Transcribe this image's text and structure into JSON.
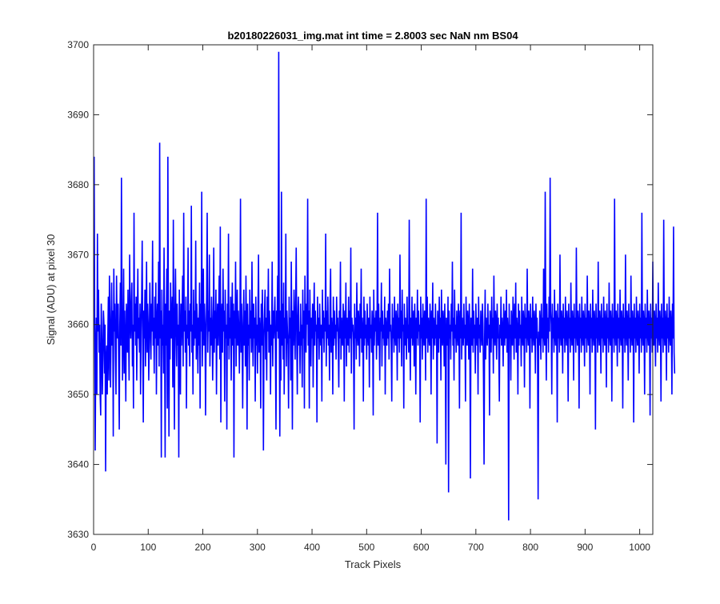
{
  "chart_data": {
    "type": "line",
    "title": "b20180226031_img.mat int time = 2.8003 sec  NaN nm BS04",
    "xlabel": "Track Pixels",
    "ylabel": "Signal (ADU) at pixel 30",
    "xlim": [
      0,
      1024
    ],
    "ylim": [
      3630,
      3700
    ],
    "xticks": [
      0,
      100,
      200,
      300,
      400,
      500,
      600,
      700,
      800,
      900,
      1000
    ],
    "yticks": [
      3630,
      3640,
      3650,
      3660,
      3670,
      3680,
      3690,
      3700
    ],
    "grid": false,
    "legend": "none",
    "series": [
      {
        "color": "#0000ff",
        "x_start": 1,
        "x_step": 1,
        "y_min": 3632,
        "y_max": 3699,
        "values": [
          3684,
          3660,
          3642,
          3657,
          3661,
          3650,
          3673,
          3659,
          3665,
          3656,
          3660,
          3650,
          3647,
          3663,
          3658,
          3650,
          3655,
          3662,
          3660,
          3653,
          3660,
          3639,
          3655,
          3657,
          3650,
          3658,
          3664,
          3652,
          3667,
          3660,
          3651,
          3659,
          3666,
          3657,
          3662,
          3644,
          3668,
          3659,
          3663,
          3655,
          3650,
          3667,
          3660,
          3658,
          3663,
          3654,
          3645,
          3660,
          3666,
          3657,
          3681,
          3662,
          3652,
          3659,
          3668,
          3653,
          3662,
          3657,
          3649,
          3663,
          3660,
          3656,
          3665,
          3659,
          3652,
          3670,
          3661,
          3658,
          3663,
          3666,
          3654,
          3660,
          3648,
          3676,
          3659,
          3663,
          3657,
          3664,
          3652,
          3660,
          3668,
          3658,
          3661,
          3656,
          3663,
          3650,
          3659,
          3664,
          3672,
          3657,
          3646,
          3662,
          3658,
          3665,
          3654,
          3661,
          3669,
          3656,
          3663,
          3660,
          3652,
          3658,
          3666,
          3660,
          3655,
          3663,
          3659,
          3672,
          3657,
          3661,
          3653,
          3664,
          3658,
          3666,
          3650,
          3660,
          3663,
          3657,
          3669,
          3654,
          3686,
          3658,
          3662,
          3641,
          3665,
          3657,
          3660,
          3653,
          3671,
          3659,
          3641,
          3663,
          3657,
          3668,
          3648,
          3684,
          3659,
          3644,
          3662,
          3655,
          3666,
          3658,
          3660,
          3664,
          3651,
          3675,
          3657,
          3645,
          3662,
          3668,
          3659,
          3654,
          3663,
          3657,
          3660,
          3641,
          3665,
          3658,
          3650,
          3663,
          3657,
          3661,
          3667,
          3654,
          3676,
          3659,
          3662,
          3656,
          3664,
          3648,
          3660,
          3658,
          3671,
          3657,
          3662,
          3654,
          3663,
          3659,
          3677,
          3656,
          3660,
          3650,
          3665,
          3657,
          3662,
          3658,
          3672,
          3655,
          3663,
          3660,
          3653,
          3661,
          3657,
          3666,
          3648,
          3663,
          3659,
          3679,
          3654,
          3661,
          3668,
          3657,
          3663,
          3660,
          3647,
          3658,
          3664,
          3676,
          3656,
          3662,
          3659,
          3670,
          3654,
          3661,
          3657,
          3664,
          3660,
          3652,
          3658,
          3671,
          3656,
          3662,
          3658,
          3665,
          3650,
          3660,
          3663,
          3657,
          3661,
          3667,
          3655,
          3674,
          3646,
          3660,
          3663,
          3656,
          3668,
          3659,
          3662,
          3649,
          3665,
          3658,
          3660,
          3645,
          3663,
          3657,
          3673,
          3655,
          3661,
          3658,
          3664,
          3652,
          3660,
          3666,
          3657,
          3663,
          3641,
          3662,
          3658,
          3669,
          3654,
          3660,
          3665,
          3657,
          3662,
          3659,
          3653,
          3661,
          3678,
          3656,
          3663,
          3658,
          3648,
          3660,
          3665,
          3657,
          3662,
          3654,
          3667,
          3659,
          3645,
          3663,
          3657,
          3660,
          3652,
          3665,
          3658,
          3662,
          3656,
          3669,
          3660,
          3654,
          3663,
          3658,
          3661,
          3649,
          3664,
          3657,
          3660,
          3653,
          3662,
          3670,
          3656,
          3661,
          3659,
          3648,
          3663,
          3657,
          3665,
          3659,
          3642,
          3658,
          3662,
          3665,
          3655,
          3661,
          3652,
          3664,
          3659,
          3668,
          3656,
          3662,
          3659,
          3650,
          3660,
          3657,
          3669,
          3654,
          3662,
          3658,
          3661,
          3664,
          3656,
          3645,
          3662,
          3659,
          3667,
          3658,
          3699,
          3660,
          3644,
          3662,
          3652,
          3679,
          3657,
          3663,
          3655,
          3666,
          3650,
          3661,
          3658,
          3673,
          3654,
          3662,
          3659,
          3657,
          3648,
          3664,
          3658,
          3661,
          3652,
          3669,
          3659,
          3645,
          3662,
          3657,
          3665,
          3660,
          3655,
          3663,
          3671,
          3658,
          3650,
          3661,
          3664,
          3657,
          3659,
          3653,
          3663,
          3657,
          3660,
          3651,
          3665,
          3658,
          3662,
          3648,
          3667,
          3659,
          3656,
          3663,
          3660,
          3678,
          3657,
          3662,
          3648,
          3665,
          3659,
          3654,
          3661,
          3658,
          3663,
          3651,
          3660,
          3666,
          3657,
          3662,
          3659,
          3660,
          3646,
          3664,
          3658,
          3661,
          3655,
          3663,
          3659,
          3657,
          3660,
          3649,
          3665,
          3658,
          3662,
          3656,
          3661,
          3659,
          3673,
          3654,
          3662,
          3658,
          3664,
          3657,
          3660,
          3652,
          3663,
          3668,
          3656,
          3661,
          3659,
          3650,
          3664,
          3657,
          3662,
          3658,
          3660,
          3655,
          3664,
          3659,
          3661,
          3657,
          3651,
          3662,
          3658,
          3669,
          3655,
          3661,
          3659,
          3657,
          3663,
          3660,
          3649,
          3662,
          3658,
          3666,
          3654,
          3661,
          3659,
          3657,
          3664,
          3656,
          3662,
          3658,
          3671,
          3653,
          3661,
          3659,
          3660,
          3657,
          3645,
          3663,
          3658,
          3661,
          3655,
          3666,
          3659,
          3657,
          3662,
          3660,
          3654,
          3663,
          3658,
          3668,
          3656,
          3661,
          3659,
          3649,
          3664,
          3657,
          3662,
          3658,
          3660,
          3655,
          3663,
          3659,
          3657,
          3661,
          3651,
          3664,
          3658,
          3660,
          3656,
          3662,
          3659,
          3647,
          3665,
          3657,
          3661,
          3659,
          3662,
          3655,
          3660,
          3676,
          3657,
          3663,
          3658,
          3652,
          3661,
          3659,
          3666,
          3654,
          3662,
          3658,
          3660,
          3657,
          3664,
          3650,
          3661,
          3659,
          3657,
          3662,
          3658,
          3663,
          3655,
          3668,
          3659,
          3660,
          3657,
          3649,
          3663,
          3658,
          3661,
          3656,
          3664,
          3659,
          3657,
          3662,
          3660,
          3652,
          3663,
          3658,
          3661,
          3656,
          3670,
          3658,
          3662,
          3654,
          3665,
          3659,
          3660,
          3648,
          3663,
          3657,
          3661,
          3659,
          3655,
          3664,
          3658,
          3660,
          3656,
          3675,
          3659,
          3652,
          3661,
          3658,
          3664,
          3657,
          3660,
          3662,
          3654,
          3663,
          3659,
          3650,
          3661,
          3658,
          3665,
          3657,
          3662,
          3659,
          3660,
          3646,
          3664,
          3658,
          3661,
          3655,
          3663,
          3659,
          3657,
          3662,
          3660,
          3652,
          3678,
          3658,
          3664,
          3656,
          3661,
          3659,
          3657,
          3663,
          3660,
          3650,
          3662,
          3658,
          3666,
          3655,
          3661,
          3659,
          3657,
          3663,
          3658,
          3660,
          3643,
          3662,
          3659,
          3656,
          3664,
          3658,
          3661,
          3652,
          3665,
          3659,
          3657,
          3662,
          3660,
          3654,
          3663,
          3658,
          3640,
          3661,
          3659,
          3657,
          3664,
          3636,
          3662,
          3658,
          3660,
          3655,
          3663,
          3659,
          3669,
          3657,
          3661,
          3652,
          3665,
          3658,
          3660,
          3656,
          3662,
          3659,
          3657,
          3663,
          3660,
          3648,
          3662,
          3658,
          3676,
          3655,
          3661,
          3659,
          3657,
          3663,
          3658,
          3660,
          3649,
          3664,
          3659,
          3657,
          3662,
          3660,
          3655,
          3663,
          3658,
          3638,
          3661,
          3659,
          3657,
          3668,
          3656,
          3662,
          3658,
          3660,
          3653,
          3663,
          3659,
          3657,
          3661,
          3650,
          3664,
          3658,
          3660,
          3656,
          3662,
          3659,
          3657,
          3663,
          3660,
          3652,
          3640,
          3658,
          3665,
          3655,
          3661,
          3659,
          3657,
          3663,
          3658,
          3660,
          3647,
          3662,
          3659,
          3656,
          3664,
          3658,
          3661,
          3653,
          3667,
          3659,
          3657,
          3662,
          3660,
          3655,
          3663,
          3658,
          3661,
          3656,
          3649,
          3660,
          3658,
          3664,
          3657,
          3661,
          3659,
          3654,
          3663,
          3660,
          3657,
          3662,
          3658,
          3665,
          3656,
          3661,
          3659,
          3632,
          3663,
          3658,
          3660,
          3652,
          3662,
          3659,
          3657,
          3664,
          3660,
          3655,
          3663,
          3658,
          3666,
          3656,
          3661,
          3659,
          3650,
          3663,
          3657,
          3662,
          3658,
          3660,
          3654,
          3664,
          3659,
          3657,
          3662,
          3660,
          3651,
          3663,
          3658,
          3661,
          3656,
          3668,
          3659,
          3657,
          3662,
          3660,
          3648,
          3663,
          3658,
          3661,
          3656,
          3664,
          3659,
          3657,
          3662,
          3660,
          3653,
          3663,
          3658,
          3661,
          3656,
          3635,
          3659,
          3657,
          3662,
          3660,
          3655,
          3663,
          3658,
          3661,
          3656,
          3668,
          3659,
          3657,
          3679,
          3660,
          3652,
          3663,
          3658,
          3661,
          3656,
          3664,
          3659,
          3681,
          3662,
          3660,
          3650,
          3663,
          3658,
          3661,
          3656,
          3665,
          3659,
          3657,
          3662,
          3660,
          3646,
          3663,
          3658,
          3661,
          3656,
          3670,
          3659,
          3657,
          3662,
          3660,
          3653,
          3663,
          3658,
          3661,
          3656,
          3664,
          3659,
          3657,
          3662,
          3660,
          3649,
          3663,
          3658,
          3661,
          3656,
          3666,
          3659,
          3657,
          3662,
          3660,
          3652,
          3663,
          3658,
          3661,
          3656,
          3671,
          3659,
          3657,
          3662,
          3660,
          3648,
          3663,
          3658,
          3661,
          3656,
          3664,
          3659,
          3657,
          3662,
          3660,
          3654,
          3663,
          3658,
          3661,
          3656,
          3667,
          3659,
          3657,
          3662,
          3660,
          3650,
          3663,
          3658,
          3661,
          3656,
          3665,
          3659,
          3657,
          3662,
          3660,
          3645,
          3663,
          3658,
          3661,
          3656,
          3669,
          3659,
          3657,
          3662,
          3660,
          3653,
          3663,
          3658,
          3661,
          3656,
          3664,
          3659,
          3657,
          3662,
          3660,
          3651,
          3663,
          3658,
          3661,
          3656,
          3666,
          3659,
          3657,
          3662,
          3660,
          3649,
          3663,
          3658,
          3661,
          3656,
          3678,
          3659,
          3657,
          3662,
          3660,
          3654,
          3663,
          3658,
          3661,
          3656,
          3665,
          3659,
          3657,
          3662,
          3660,
          3648,
          3663,
          3658,
          3661,
          3656,
          3670,
          3659,
          3657,
          3662,
          3660,
          3652,
          3663,
          3658,
          3661,
          3656,
          3667,
          3659,
          3657,
          3662,
          3660,
          3646,
          3663,
          3658,
          3661,
          3656,
          3664,
          3659,
          3657,
          3662,
          3660,
          3653,
          3663,
          3658,
          3661,
          3656,
          3676,
          3659,
          3657,
          3662,
          3660,
          3650,
          3663,
          3658,
          3661,
          3656,
          3665,
          3659,
          3657,
          3662,
          3660,
          3647,
          3663,
          3658,
          3661,
          3656,
          3669,
          3659,
          3657,
          3662,
          3660,
          3654,
          3663,
          3658,
          3661,
          3656,
          3666,
          3659,
          3657,
          3662,
          3660,
          3649,
          3663,
          3658,
          3661,
          3656,
          3675,
          3659,
          3657,
          3662,
          3660,
          3652,
          3663,
          3658,
          3661,
          3656,
          3664,
          3659,
          3657,
          3662,
          3660,
          3650,
          3663,
          3658,
          3674,
          3656,
          3653
        ]
      }
    ]
  }
}
